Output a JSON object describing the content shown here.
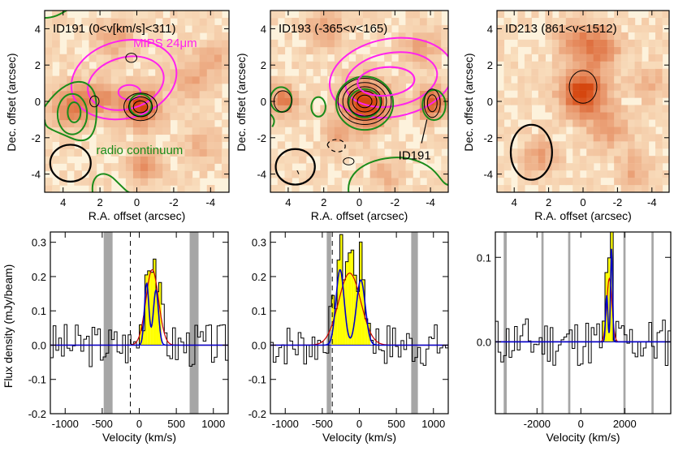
{
  "colors": {
    "magenta": "#ff22ee",
    "green": "#1a8c1a",
    "yellow": "#ffff00",
    "blue": "#0000cc",
    "red": "#cc0000",
    "gray": "#999999",
    "black": "#000000"
  },
  "figure": {
    "ylabel_top": "Dec. offset (arcsec)",
    "xlabel_top": "R.A. offset (arcsec)",
    "ylabel_bottom": "Flux density (mJy/beam)",
    "xlabel_bottom": "Velocity (km/s)"
  },
  "chart_data": [
    {
      "type": "heatmap",
      "id": "map1",
      "title": "ID191 (0<v[km/s]<311)",
      "xlabel": "R.A. offset (arcsec)",
      "ylabel": "Dec. offset (arcsec)",
      "xlim": [
        5,
        -5
      ],
      "ylim": [
        -5,
        5
      ],
      "xticks": [
        4,
        2,
        0,
        -2,
        -4
      ],
      "yticks": [
        4,
        2,
        0,
        -2,
        -4
      ],
      "annotations": [
        {
          "text": "MIPS 24μm",
          "color": "magenta",
          "x": 0.2,
          "y": 3.0
        },
        {
          "text": "radio continuum",
          "color": "green",
          "x": 2.2,
          "y": -2.9
        }
      ],
      "heat_blobs": [
        {
          "x": -0.2,
          "y": -0.3,
          "s": 0.7,
          "a": 0.9
        },
        {
          "x": 3.5,
          "y": -0.2,
          "s": 0.8,
          "a": 0.55
        },
        {
          "x": 1.8,
          "y": 0.2,
          "s": 0.7,
          "a": 0.35
        },
        {
          "x": -0.5,
          "y": -3.5,
          "s": 0.6,
          "a": 0.45
        },
        {
          "x": 1.2,
          "y": 3.5,
          "s": 0.7,
          "a": 0.3
        },
        {
          "x": -3.0,
          "y": 1.3,
          "s": 0.8,
          "a": 0.3
        },
        {
          "x": -4.2,
          "y": 2.5,
          "s": 0.6,
          "a": 0.25
        },
        {
          "x": -3.5,
          "y": -2.5,
          "s": 0.7,
          "a": 0.25
        }
      ],
      "contours_black": [
        {
          "x": -0.2,
          "y": -0.3,
          "rx": 0.9,
          "ry": 0.75,
          "levels": 3
        },
        {
          "x": 2.3,
          "y": 0.0,
          "rx": 0.25,
          "ry": 0.3,
          "levels": 1
        },
        {
          "x": 0.3,
          "y": 2.4,
          "rx": 0.3,
          "ry": 0.25,
          "levels": 1
        }
      ],
      "contours_magenta": [
        {
          "x": 0.7,
          "y": 1.2,
          "rx": 2.9,
          "ry": 2.1,
          "rot": -15
        },
        {
          "x": 0.6,
          "y": 1.0,
          "rx": 2.1,
          "ry": 1.4,
          "rot": -15
        },
        {
          "x": 0.4,
          "y": 0.5,
          "rx": 0.6,
          "ry": 0.4,
          "rot": 0
        }
      ],
      "beam": {
        "x": 3.6,
        "y": -3.4,
        "rx": 1.1,
        "ry": 1.0
      }
    },
    {
      "type": "heatmap",
      "id": "map2",
      "title": "ID193 (-365<v<165)",
      "xlabel": "R.A. offset (arcsec)",
      "ylabel": "",
      "xlim": [
        5,
        -5
      ],
      "ylim": [
        -5,
        5
      ],
      "xticks": [
        4,
        2,
        0,
        -2,
        -4
      ],
      "yticks": [
        4,
        2,
        0,
        -2,
        -4
      ],
      "annotations": [
        {
          "text": "ID191",
          "color": "black",
          "x": -2.2,
          "y": -3.2
        }
      ],
      "heat_blobs": [
        {
          "x": -0.3,
          "y": -0.1,
          "s": 0.9,
          "a": 0.95
        },
        {
          "x": -4.1,
          "y": -0.1,
          "s": 0.6,
          "a": 0.75
        },
        {
          "x": 4.3,
          "y": 0.0,
          "s": 0.6,
          "a": 0.55
        },
        {
          "x": 2.0,
          "y": 4.0,
          "s": 0.8,
          "a": 0.3
        },
        {
          "x": -3.5,
          "y": 3.0,
          "s": 0.7,
          "a": 0.3
        },
        {
          "x": -1.5,
          "y": -4.0,
          "s": 0.6,
          "a": 0.25
        },
        {
          "x": 1.2,
          "y": -1.8,
          "s": 0.6,
          "a": 0.25
        }
      ],
      "contours_black": [
        {
          "x": -0.3,
          "y": 0.0,
          "rx": 1.5,
          "ry": 1.3,
          "levels": 5
        },
        {
          "x": -4.1,
          "y": -0.1,
          "rx": 0.45,
          "ry": 0.8,
          "levels": 2
        },
        {
          "x": 4.3,
          "y": 0.0,
          "rx": 0.5,
          "ry": 0.6,
          "levels": 1
        },
        {
          "x": 0.6,
          "y": -3.3,
          "rx": 0.3,
          "ry": 0.2,
          "levels": 1
        }
      ],
      "contours_magenta": [
        {
          "x": -1.8,
          "y": 1.3,
          "rx": 3.5,
          "ry": 2.2,
          "rot": -10
        },
        {
          "x": -1.8,
          "y": 1.2,
          "rx": 2.6,
          "ry": 1.5,
          "rot": -10
        },
        {
          "x": -1.5,
          "y": 1.1,
          "rx": 1.6,
          "ry": 0.8,
          "rot": -5
        }
      ],
      "beam": {
        "x": 3.6,
        "y": -3.6,
        "rx": 1.1,
        "ry": 1.0
      }
    },
    {
      "type": "heatmap",
      "id": "map3",
      "title": "ID213 (861<v<1512)",
      "xlabel": "R.A. offset (arcsec)",
      "ylabel": "",
      "xlim": [
        5,
        -5
      ],
      "ylim": [
        -5,
        5
      ],
      "xticks": [
        4,
        2,
        0,
        -2,
        -4
      ],
      "yticks": [
        4,
        2,
        0,
        -2,
        -4
      ],
      "annotations": [],
      "heat_blobs": [
        {
          "x": 0.0,
          "y": 0.5,
          "s": 0.9,
          "a": 0.9
        },
        {
          "x": -1.0,
          "y": 3.0,
          "s": 0.8,
          "a": 0.55
        },
        {
          "x": 0.5,
          "y": 3.3,
          "s": 0.7,
          "a": 0.4
        },
        {
          "x": -1.5,
          "y": -1.5,
          "s": 0.8,
          "a": 0.35
        },
        {
          "x": -3.0,
          "y": -3.8,
          "s": 0.7,
          "a": 0.3
        },
        {
          "x": 2.5,
          "y": -3.0,
          "s": 0.7,
          "a": 0.35
        },
        {
          "x": -4.0,
          "y": 1.0,
          "s": 0.7,
          "a": 0.25
        }
      ],
      "contours_black": [
        {
          "x": 0.0,
          "y": 0.8,
          "rx": 0.8,
          "ry": 0.95,
          "levels": 1
        }
      ],
      "contours_magenta": [],
      "beam": {
        "x": 3.0,
        "y": -2.8,
        "rx": 1.2,
        "ry": 1.6
      }
    },
    {
      "type": "line",
      "id": "spec1",
      "xlabel": "Velocity (km/s)",
      "ylabel": "Flux density (mJy/beam)",
      "xlim": [
        -1200,
        1200
      ],
      "ylim": [
        -0.2,
        0.33
      ],
      "xticks": [
        -1000,
        -500,
        0,
        500,
        1000
      ],
      "yticks": [
        -0.2,
        -0.1,
        0.0,
        0.1,
        0.2,
        0.3
      ],
      "gray_bands": [
        [
          -480,
          -360
        ],
        [
          680,
          800
        ]
      ],
      "dashed_line_v": -120,
      "yellow_range": [
        0,
        311
      ],
      "gauss_red": [
        {
          "amp": 0.22,
          "mu": 175,
          "sigma": 85
        }
      ],
      "gauss_blue": [
        {
          "amp": 0.18,
          "mu": 100,
          "sigma": 30
        },
        {
          "amp": 0.16,
          "mu": 225,
          "sigma": 35
        }
      ],
      "noise_seed": 3,
      "noise_amp": 0.065
    },
    {
      "type": "line",
      "id": "spec2",
      "xlabel": "Velocity (km/s)",
      "ylabel": "",
      "xlim": [
        -1200,
        1200
      ],
      "ylim": [
        -0.2,
        0.33
      ],
      "xticks": [
        -1000,
        -500,
        0,
        500,
        1000
      ],
      "yticks": [
        -0.2,
        -0.1,
        0.0,
        0.1,
        0.2,
        0.3
      ],
      "gray_bands": [
        [
          -440,
          -380
        ],
        [
          700,
          790
        ]
      ],
      "dashed_line_v": -365,
      "yellow_range": [
        -365,
        165
      ],
      "gauss_red": [
        {
          "amp": 0.21,
          "mu": -130,
          "sigma": 150
        }
      ],
      "gauss_blue": [
        {
          "amp": 0.22,
          "mu": -260,
          "sigma": 55
        },
        {
          "amp": 0.19,
          "mu": 20,
          "sigma": 60
        }
      ],
      "noise_seed": 7,
      "noise_amp": 0.065
    },
    {
      "type": "line",
      "id": "spec3",
      "xlabel": "Velocity (km/s)",
      "ylabel": "",
      "xlim": [
        -3900,
        4100
      ],
      "ylim": [
        -0.085,
        0.13
      ],
      "xticks": [
        -2000,
        0,
        2000
      ],
      "yticks": [
        0.0,
        0.1
      ],
      "gray_bands": [
        [
          -3520,
          -3380
        ],
        [
          -1800,
          -1700
        ],
        [
          -580,
          -480
        ],
        [
          1940,
          2040
        ],
        [
          3220,
          3320
        ]
      ],
      "dashed_line_v": null,
      "yellow_range": [
        861,
        1512
      ],
      "gauss_red": [
        {
          "amp": 0.075,
          "mu": 1300,
          "sigma": 120
        }
      ],
      "gauss_blue": [
        {
          "amp": 0.055,
          "mu": 1180,
          "sigma": 50
        },
        {
          "amp": 0.11,
          "mu": 1400,
          "sigma": 45
        }
      ],
      "noise_seed": 11,
      "noise_amp": 0.03
    }
  ]
}
